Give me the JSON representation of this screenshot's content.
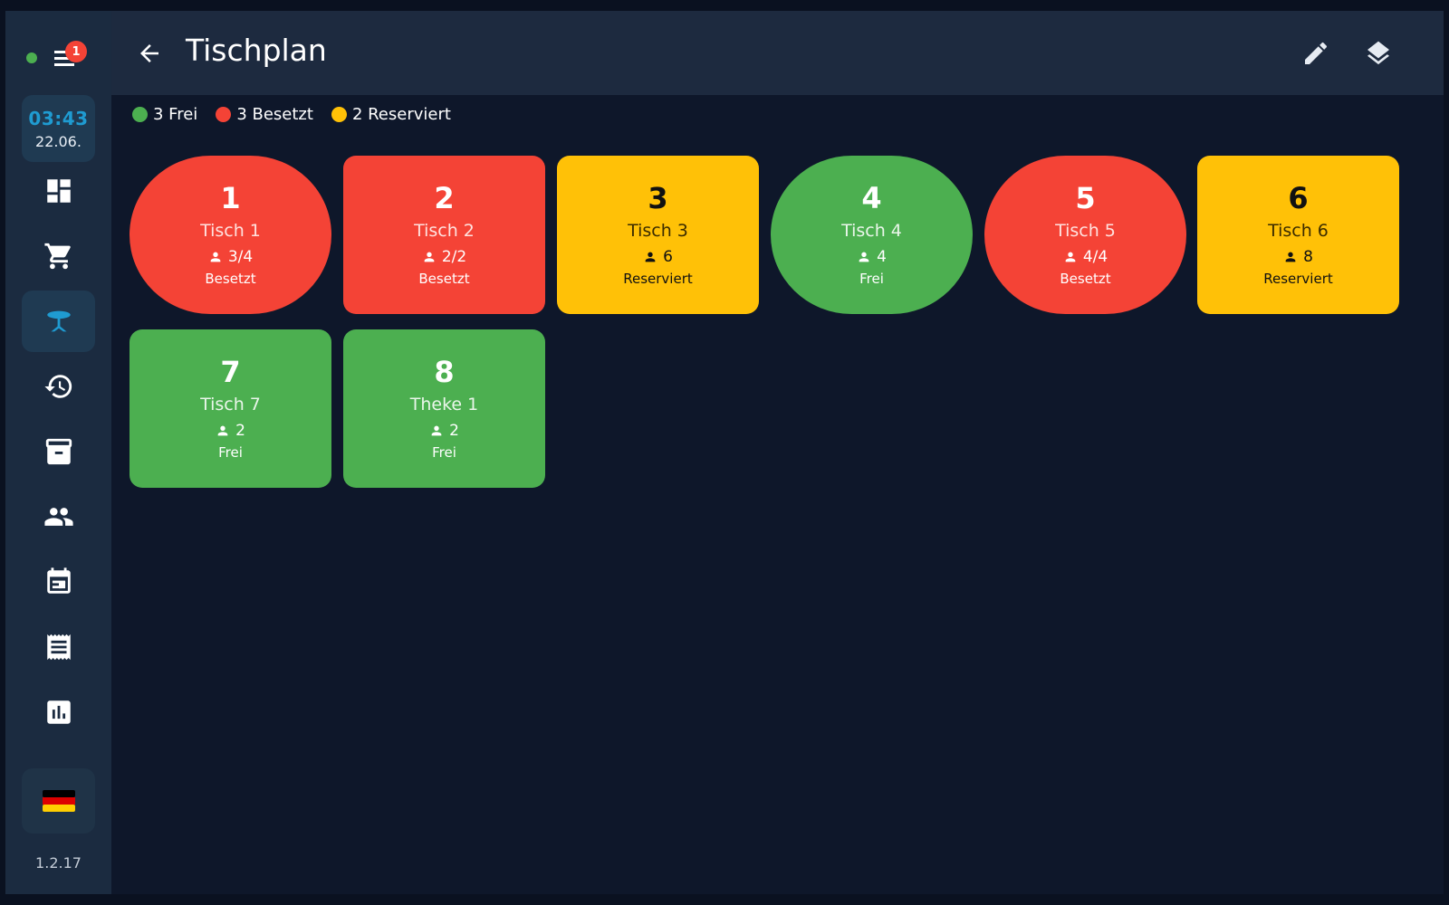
{
  "app": {
    "notification_count": "1",
    "status_color": "#4caf50",
    "clock": {
      "time": "03:43",
      "date": "22.06."
    },
    "version": "1.2.17",
    "language_flag": "🇩🇪"
  },
  "sidebar": {
    "items": [
      {
        "name": "dashboard",
        "icon": "dashboard-icon",
        "active": false
      },
      {
        "name": "cart",
        "icon": "cart-icon",
        "active": false
      },
      {
        "name": "tables",
        "icon": "table-icon",
        "active": true
      },
      {
        "name": "history",
        "icon": "history-icon",
        "active": false
      },
      {
        "name": "archive",
        "icon": "archive-icon",
        "active": false
      },
      {
        "name": "customers",
        "icon": "people-icon",
        "active": false
      },
      {
        "name": "calendar",
        "icon": "calendar-icon",
        "active": false
      },
      {
        "name": "receipts",
        "icon": "receipt-icon",
        "active": false
      },
      {
        "name": "reports",
        "icon": "chart-icon",
        "active": false
      }
    ]
  },
  "header": {
    "title": "Tischplan"
  },
  "legend": {
    "free": {
      "label": "3 Frei",
      "color": "#4caf50"
    },
    "occupied": {
      "label": "3 Besetzt",
      "color": "#f44336"
    },
    "reserved": {
      "label": "2 Reserviert",
      "color": "#ffc107"
    }
  },
  "tables": [
    {
      "number": "1",
      "name": "Tisch 1",
      "guests": "3/4",
      "status": "Besetzt",
      "shape": "round",
      "color": "red"
    },
    {
      "number": "2",
      "name": "Tisch 2",
      "guests": "2/2",
      "status": "Besetzt",
      "shape": "square",
      "color": "red"
    },
    {
      "number": "3",
      "name": "Tisch 3",
      "guests": "6",
      "status": "Reserviert",
      "shape": "square",
      "color": "yellow"
    },
    {
      "number": "4",
      "name": "Tisch 4",
      "guests": "4",
      "status": "Frei",
      "shape": "round",
      "color": "green"
    },
    {
      "number": "5",
      "name": "Tisch 5",
      "guests": "4/4",
      "status": "Besetzt",
      "shape": "round",
      "color": "red"
    },
    {
      "number": "6",
      "name": "Tisch 6",
      "guests": "8",
      "status": "Reserviert",
      "shape": "square",
      "color": "yellow"
    },
    {
      "number": "7",
      "name": "Tisch 7",
      "guests": "2",
      "status": "Frei",
      "shape": "square",
      "color": "green"
    },
    {
      "number": "8",
      "name": "Theke 1",
      "guests": "2",
      "status": "Frei",
      "shape": "square",
      "color": "green"
    }
  ]
}
